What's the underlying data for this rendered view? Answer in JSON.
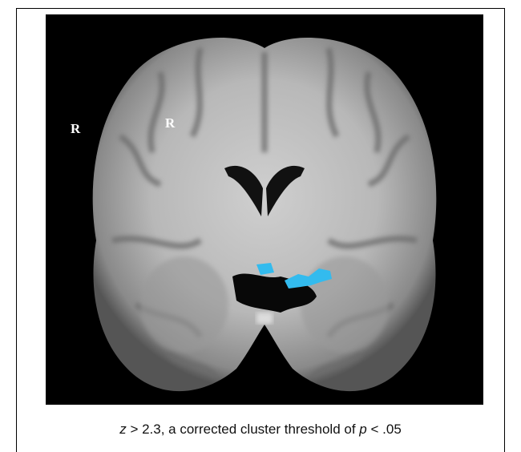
{
  "figure": {
    "labels": [
      "R",
      "R"
    ],
    "caption": {
      "parts": [
        "z",
        " > 2.3, a corrected cluster threshold of ",
        "p",
        " < .05"
      ]
    }
  }
}
